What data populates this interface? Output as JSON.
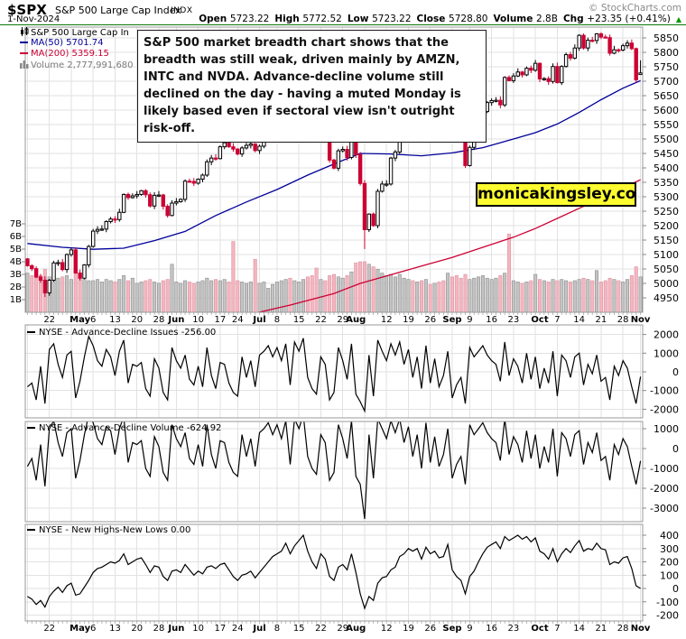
{
  "header": {
    "symbol": "$SPX",
    "name": "S&P 500 Large Cap Index",
    "exchange": "INDX",
    "date": "1-Nov-2024",
    "copyright": "© StockCharts.com",
    "quote": [
      {
        "label": "Open",
        "value": "5723.22"
      },
      {
        "label": "High",
        "value": "5772.52"
      },
      {
        "label": "Low",
        "value": "5723.22"
      },
      {
        "label": "Close",
        "value": "5728.80"
      },
      {
        "label": "Volume",
        "value": "2.8B"
      },
      {
        "label": "Chg",
        "value": "+23.35 (+0.41%)"
      }
    ],
    "chg_arrow": "▲"
  },
  "legend": {
    "price": "S&P 500 Large Cap In",
    "ma50": "MA(50) 5701.74",
    "ma200": "MA(200) 5359.15",
    "volume": "Volume 2,777,991,680"
  },
  "annotation": "S&P 500 market breadth chart shows that the breadth was still weak, driven mainly by AMZN, INTC and NVDA. Advance-decline volume still declined on the day - having a muted Monday is likely based even if sectoral view isn't outright risk-off.",
  "watermark": "monicakingsley.co",
  "colors": {
    "up_candle": "#ffffff",
    "up_outline": "#000000",
    "down_candle": "#cc0033",
    "ma50": "#000099",
    "ma200": "#cc0033",
    "vol_up": "#c4c4c4",
    "vol_up_border": "#8c8c8c",
    "vol_down": "#f4b6c0",
    "vol_down_border": "#dd92a0",
    "grid": "#e2e2e2",
    "panel_border": "#999999",
    "chg_green": "#009900",
    "watermark_bg": "#fcfc30"
  },
  "chart_data": {
    "type": "candlestick",
    "title": "$SPX S&P 500 Large Cap Index",
    "x_range": "15-Apr-2024 to 1-Nov-2024 (daily)",
    "x_labels": [
      {
        "t": "22",
        "d": 5,
        "m": false
      },
      {
        "t": "May",
        "d": 12,
        "m": true
      },
      {
        "t": "6",
        "d": 15,
        "m": false
      },
      {
        "t": "13",
        "d": 20,
        "m": false
      },
      {
        "t": "20",
        "d": 25,
        "m": false
      },
      {
        "t": "28",
        "d": 30,
        "m": false
      },
      {
        "t": "Jun",
        "d": 34,
        "m": true
      },
      {
        "t": "10",
        "d": 39,
        "m": false
      },
      {
        "t": "17",
        "d": 44,
        "m": false
      },
      {
        "t": "24",
        "d": 48,
        "m": false
      },
      {
        "t": "Jul",
        "d": 53,
        "m": true
      },
      {
        "t": "8",
        "d": 57,
        "m": false
      },
      {
        "t": "15",
        "d": 62,
        "m": false
      },
      {
        "t": "22",
        "d": 67,
        "m": false
      },
      {
        "t": "29",
        "d": 72,
        "m": false
      },
      {
        "t": "Aug",
        "d": 75,
        "m": true
      },
      {
        "t": "12",
        "d": 82,
        "m": false
      },
      {
        "t": "19",
        "d": 87,
        "m": false
      },
      {
        "t": "26",
        "d": 92,
        "m": false
      },
      {
        "t": "Sep",
        "d": 97,
        "m": true
      },
      {
        "t": "9",
        "d": 101,
        "m": false
      },
      {
        "t": "16",
        "d": 106,
        "m": false
      },
      {
        "t": "23",
        "d": 111,
        "m": false
      },
      {
        "t": "Oct",
        "d": 117,
        "m": true
      },
      {
        "t": "7",
        "d": 121,
        "m": false
      },
      {
        "t": "14",
        "d": 126,
        "m": false
      },
      {
        "t": "21",
        "d": 131,
        "m": false
      },
      {
        "t": "28",
        "d": 136,
        "m": false
      },
      {
        "t": "Nov",
        "d": 140,
        "m": true
      }
    ],
    "grid_days": [
      0,
      5,
      10,
      15,
      20,
      25,
      30,
      34,
      39,
      44,
      48,
      53,
      57,
      62,
      67,
      72,
      77,
      82,
      87,
      92,
      97,
      101,
      106,
      111,
      116,
      121,
      126,
      131,
      136,
      140
    ],
    "price_panel": {
      "yticks": [
        5850,
        5800,
        5750,
        5700,
        5650,
        5600,
        5550,
        5500,
        5450,
        5400,
        5350,
        5300,
        5250,
        5200,
        5150,
        5100,
        5050,
        5000,
        4950
      ],
      "ylim": [
        4900,
        5890
      ],
      "volume_ticks": [
        "7B",
        "6B",
        "5B",
        "4B",
        "3B",
        "2B",
        "1B"
      ],
      "close": [
        5061,
        5051,
        5022,
        5011,
        4967,
        5011,
        5071,
        5072,
        5048,
        5100,
        5116,
        5036,
        5018,
        5064,
        5128,
        5181,
        5187,
        5188,
        5214,
        5223,
        5221,
        5246,
        5308,
        5297,
        5303,
        5308,
        5321,
        5307,
        5268,
        5305,
        5306,
        5267,
        5235,
        5278,
        5283,
        5291,
        5354,
        5353,
        5347,
        5361,
        5375,
        5421,
        5434,
        5432,
        5473,
        5487,
        5473,
        5465,
        5448,
        5469,
        5478,
        5483,
        5460,
        5475,
        5509,
        5537,
        5567,
        5573,
        5577,
        5634,
        5585,
        5615,
        5631,
        5667,
        5588,
        5544,
        5505,
        5564,
        5556,
        5427,
        5399,
        5459,
        5464,
        5436,
        5522,
        5446,
        5346,
        5186,
        5240,
        5200,
        5319,
        5344,
        5344,
        5434,
        5455,
        5543,
        5554,
        5608,
        5597,
        5620,
        5570,
        5634,
        5616,
        5625,
        5592,
        5591,
        5648,
        5528,
        5520,
        5503,
        5408,
        5471,
        5495,
        5554,
        5595,
        5626,
        5633,
        5634,
        5618,
        5713,
        5702,
        5718,
        5732,
        5722,
        5745,
        5738,
        5762,
        5708,
        5709,
        5699,
        5751,
        5695,
        5751,
        5792,
        5780,
        5815,
        5859,
        5815,
        5842,
        5841,
        5864,
        5853,
        5851,
        5797,
        5809,
        5808,
        5823,
        5832,
        5813,
        5705,
        5728.8
      ],
      "low_overrides": {
        "4": 4953,
        "77": 5119
      },
      "last_ohlc": {
        "open": 5723.22,
        "high": 5772.52,
        "low": 5723.22,
        "close": 5728.8
      },
      "volume_billions": [
        3.1,
        2.9,
        2.8,
        2.9,
        3.4,
        2.8,
        2.9,
        2.7,
        2.8,
        2.9,
        2.6,
        3.1,
        2.7,
        2.6,
        2.5,
        2.5,
        2.6,
        2.4,
        2.6,
        2.5,
        2.4,
        2.6,
        2.9,
        2.5,
        2.7,
        2.3,
        2.4,
        2.5,
        2.6,
        2.4,
        2.3,
        2.5,
        2.6,
        3.8,
        2.4,
        2.3,
        2.5,
        2.4,
        2.3,
        2.4,
        2.5,
        2.7,
        2.5,
        2.6,
        2.5,
        2.6,
        2.4,
        5.6,
        2.5,
        2.4,
        2.3,
        2.4,
        4.2,
        2.3,
        2.4,
        1.9,
        2.2,
        2.4,
        2.5,
        2.6,
        2.7,
        2.5,
        2.4,
        2.6,
        2.8,
        2.9,
        3.5,
        2.6,
        2.5,
        2.9,
        3.0,
        2.8,
        2.7,
        2.9,
        3.2,
        3.9,
        4.0,
        4.0,
        3.8,
        3.6,
        3.4,
        3.1,
        2.9,
        3.0,
        2.8,
        3.0,
        2.7,
        2.6,
        2.5,
        2.4,
        2.5,
        2.6,
        2.2,
        2.3,
        2.4,
        2.5,
        3.1,
        2.8,
        2.9,
        2.7,
        3.0,
        2.6,
        2.7,
        2.8,
        2.9,
        2.7,
        2.6,
        2.7,
        2.9,
        3.1,
        6.2,
        2.5,
        2.4,
        2.3,
        2.4,
        2.5,
        3.0,
        2.6,
        2.5,
        2.4,
        2.6,
        2.5,
        2.6,
        2.5,
        2.4,
        2.5,
        2.6,
        2.7,
        2.6,
        2.5,
        3.3,
        2.4,
        2.5,
        2.7,
        2.6,
        2.5,
        2.4,
        2.6,
        2.9,
        3.6,
        2.8
      ],
      "ma50_points": [
        [
          0,
          5138
        ],
        [
          8,
          5125
        ],
        [
          15,
          5118
        ],
        [
          22,
          5122
        ],
        [
          29,
          5148
        ],
        [
          36,
          5180
        ],
        [
          43,
          5235
        ],
        [
          50,
          5282
        ],
        [
          57,
          5325
        ],
        [
          64,
          5375
        ],
        [
          71,
          5420
        ],
        [
          76,
          5450
        ],
        [
          83,
          5448
        ],
        [
          90,
          5442
        ],
        [
          97,
          5452
        ],
        [
          104,
          5470
        ],
        [
          111,
          5500
        ],
        [
          116,
          5522
        ],
        [
          121,
          5552
        ],
        [
          126,
          5592
        ],
        [
          131,
          5636
        ],
        [
          136,
          5676
        ],
        [
          140,
          5702
        ]
      ],
      "ma200_points": [
        [
          50,
          4890
        ],
        [
          60,
          4925
        ],
        [
          70,
          4965
        ],
        [
          76,
          5000
        ],
        [
          83,
          5030
        ],
        [
          90,
          5060
        ],
        [
          97,
          5090
        ],
        [
          104,
          5125
        ],
        [
          111,
          5160
        ],
        [
          116,
          5190
        ],
        [
          121,
          5225
        ],
        [
          126,
          5260
        ],
        [
          131,
          5295
        ],
        [
          136,
          5330
        ],
        [
          140,
          5359
        ]
      ]
    },
    "panels": [
      {
        "title": "NYSE - Advance-Decline Issues -256.00",
        "yticks": [
          2000,
          1000,
          0,
          -1000,
          -2000
        ],
        "values": [
          -800,
          -600,
          -1500,
          300,
          -1700,
          1200,
          1500,
          400,
          -300,
          900,
          1100,
          -1400,
          -500,
          800,
          1900,
          1400,
          600,
          300,
          1200,
          800,
          -200,
          1100,
          1700,
          -600,
          400,
          300,
          500,
          -900,
          -1300,
          700,
          200,
          -1100,
          -1500,
          1300,
          600,
          200,
          900,
          -400,
          -700,
          300,
          -800,
          1300,
          -200,
          -900,
          500,
          400,
          -600,
          -1100,
          -1300,
          800,
          -300,
          600,
          -800,
          900,
          1100,
          1400,
          800,
          1300,
          600,
          1500,
          -700,
          1600,
          1100,
          1800,
          -300,
          -900,
          -1200,
          800,
          400,
          -1500,
          -1100,
          1300,
          600,
          -400,
          1500,
          -1200,
          -1600,
          -2100,
          900,
          -1300,
          1700,
          1100,
          600,
          1500,
          900,
          1600,
          400,
          1200,
          -300,
          800,
          -900,
          1400,
          -600,
          700,
          -800,
          -200,
          1100,
          -1400,
          -700,
          -300,
          -1700,
          1300,
          800,
          1100,
          1400,
          900,
          600,
          400,
          -500,
          1600,
          -200,
          700,
          300,
          -600,
          1000,
          -400,
          800,
          -900,
          200,
          -600,
          1100,
          -1300,
          900,
          600,
          -300,
          800,
          1000,
          -700,
          400,
          -100,
          900,
          -500,
          -300,
          -1500,
          300,
          -200,
          600,
          200,
          -800,
          -1700,
          -256
        ]
      },
      {
        "title": "NYSE - Advance-Decline Volume -624.92",
        "yticks": [
          1000,
          0,
          -1000,
          -2000,
          -3000
        ],
        "values": [
          -900,
          -500,
          -1600,
          200,
          -1900,
          1000,
          1400,
          300,
          -400,
          800,
          1000,
          -1500,
          -600,
          700,
          1700,
          1300,
          500,
          200,
          1100,
          900,
          -300,
          1000,
          1600,
          -700,
          300,
          200,
          400,
          -1000,
          -1400,
          600,
          100,
          -1200,
          -1600,
          1200,
          500,
          100,
          800,
          -500,
          -800,
          200,
          -900,
          1200,
          -300,
          -1000,
          400,
          300,
          -700,
          -1200,
          -1400,
          700,
          -400,
          500,
          -900,
          800,
          1000,
          1300,
          700,
          1200,
          500,
          1400,
          -800,
          1500,
          1000,
          1700,
          -400,
          -1000,
          -1300,
          700,
          300,
          -1600,
          -1200,
          1200,
          500,
          -500,
          1400,
          -1400,
          -1800,
          -3550,
          700,
          -1500,
          1500,
          1000,
          500,
          1400,
          800,
          1500,
          300,
          1100,
          -400,
          700,
          -1000,
          1300,
          -700,
          600,
          -900,
          -300,
          1000,
          -1500,
          -800,
          -400,
          -1800,
          1200,
          700,
          1000,
          1300,
          800,
          500,
          300,
          -600,
          1500,
          -300,
          600,
          200,
          -700,
          900,
          -500,
          700,
          -1000,
          100,
          -700,
          1000,
          -1400,
          800,
          500,
          -400,
          700,
          900,
          -800,
          300,
          -200,
          800,
          -600,
          -400,
          -1600,
          200,
          -300,
          500,
          100,
          -900,
          -1800,
          -624.92
        ]
      },
      {
        "title": "NYSE - New Highs-New Lows 0.00",
        "yticks": [
          400,
          300,
          200,
          100,
          0,
          -100,
          -200
        ],
        "values": [
          -60,
          -80,
          -120,
          -90,
          -140,
          -60,
          -20,
          10,
          -30,
          20,
          40,
          -50,
          -40,
          10,
          60,
          120,
          150,
          160,
          180,
          200,
          190,
          210,
          260,
          180,
          200,
          220,
          230,
          180,
          120,
          170,
          160,
          90,
          60,
          130,
          140,
          120,
          180,
          140,
          100,
          130,
          110,
          160,
          170,
          150,
          180,
          190,
          140,
          90,
          60,
          100,
          110,
          130,
          80,
          120,
          160,
          200,
          240,
          260,
          280,
          340,
          260,
          320,
          360,
          400,
          280,
          200,
          150,
          260,
          220,
          90,
          60,
          160,
          180,
          140,
          260,
          120,
          -40,
          -150,
          -60,
          -90,
          40,
          80,
          90,
          140,
          160,
          240,
          260,
          300,
          280,
          300,
          220,
          310,
          260,
          280,
          230,
          240,
          330,
          140,
          90,
          60,
          -40,
          90,
          130,
          200,
          260,
          310,
          330,
          350,
          300,
          390,
          360,
          380,
          400,
          370,
          390,
          350,
          380,
          280,
          260,
          220,
          300,
          200,
          260,
          300,
          270,
          320,
          360,
          280,
          300,
          290,
          340,
          300,
          290,
          180,
          200,
          190,
          230,
          240,
          150,
          20,
          0
        ]
      }
    ]
  }
}
